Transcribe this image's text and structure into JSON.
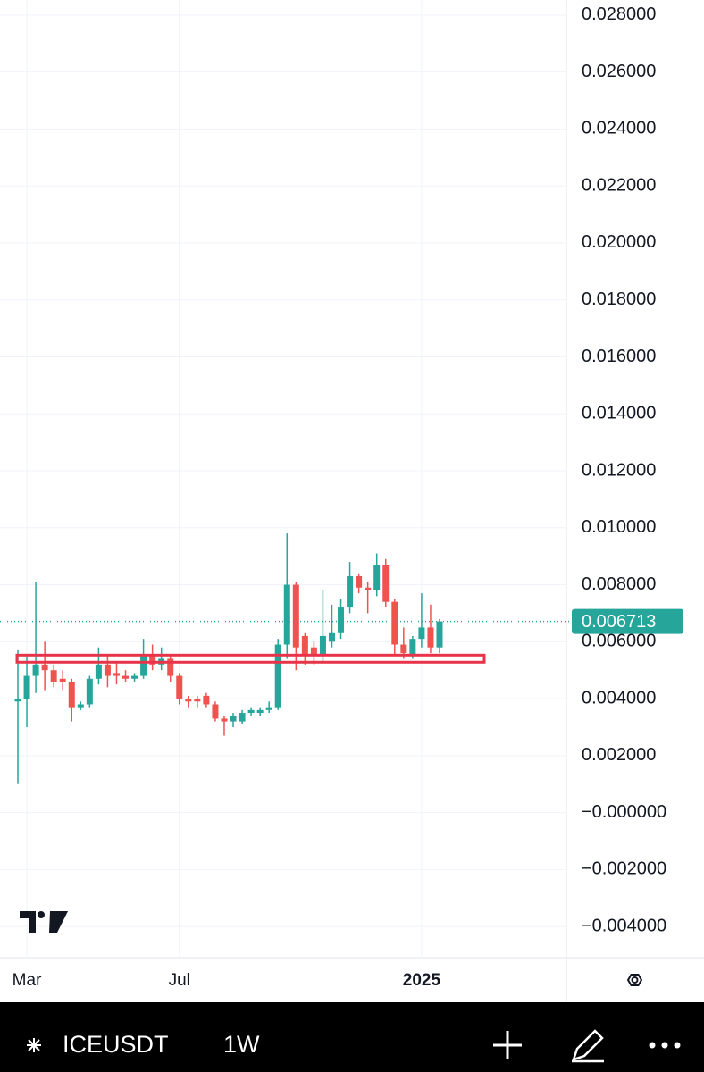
{
  "chart_data": {
    "type": "candlestick",
    "categories": [
      null,
      "Mar",
      null,
      null,
      null,
      null,
      null,
      null,
      null,
      null,
      null,
      null,
      null,
      null,
      null,
      null,
      null,
      null,
      "Jul",
      null,
      null,
      null,
      null,
      null,
      null,
      null,
      null,
      null,
      null,
      null,
      null,
      null,
      null,
      null,
      null,
      null,
      null,
      null,
      null,
      null,
      null,
      null,
      null,
      null,
      null,
      "2025",
      null,
      null
    ],
    "open": [
      0.0039,
      0.004,
      0.0048,
      0.0052,
      0.005,
      0.0047,
      0.0046,
      0.0037,
      0.0038,
      0.0047,
      0.0052,
      0.0049,
      0.0048,
      0.0047,
      0.0048,
      0.0055,
      0.0052,
      0.0054,
      0.0048,
      0.004,
      0.004,
      0.0041,
      0.0038,
      0.0033,
      0.0032,
      0.0032,
      0.0035,
      0.0035,
      0.0036,
      0.0037,
      0.0059,
      0.008,
      0.0062,
      0.0058,
      0.0055,
      0.006,
      0.0063,
      0.0072,
      0.0083,
      0.0079,
      0.0078,
      0.0087,
      0.0074,
      0.0059,
      0.0055,
      0.0061,
      0.0065,
      0.0058
    ],
    "high": [
      0.0057,
      0.0055,
      0.0081,
      0.006,
      0.0052,
      0.005,
      0.0047,
      0.0039,
      0.0048,
      0.0058,
      0.0055,
      0.0053,
      0.005,
      0.0049,
      0.0061,
      0.0059,
      0.0058,
      0.0055,
      0.0049,
      0.0041,
      0.0041,
      0.0042,
      0.0039,
      0.0034,
      0.0035,
      0.0036,
      0.0037,
      0.0037,
      0.0039,
      0.0061,
      0.0098,
      0.0081,
      0.0063,
      0.006,
      0.0078,
      0.0073,
      0.0075,
      0.0088,
      0.0084,
      0.0081,
      0.0091,
      0.0089,
      0.0075,
      0.0065,
      0.0062,
      0.0077,
      0.0073,
      0.0068
    ],
    "low": [
      0.001,
      0.003,
      0.0042,
      0.0043,
      0.0044,
      0.0043,
      0.0032,
      0.0036,
      0.0037,
      0.0045,
      0.0044,
      0.0045,
      0.0046,
      0.0046,
      0.0047,
      0.005,
      0.005,
      0.0046,
      0.0038,
      0.0037,
      0.0037,
      0.0037,
      0.0032,
      0.0027,
      0.003,
      0.0031,
      0.0034,
      0.0034,
      0.0035,
      0.0036,
      0.0054,
      0.005,
      0.0052,
      0.0052,
      0.0053,
      0.0058,
      0.0061,
      0.007,
      0.0077,
      0.007,
      0.0076,
      0.0072,
      0.0055,
      0.0054,
      0.0054,
      0.0058,
      0.0056,
      0.0056
    ],
    "close": [
      0.004,
      0.0048,
      0.0052,
      0.005,
      0.0046,
      0.0046,
      0.0037,
      0.0038,
      0.0047,
      0.0052,
      0.0048,
      0.0048,
      0.0047,
      0.0048,
      0.0055,
      0.0052,
      0.0054,
      0.0048,
      0.004,
      0.0039,
      0.0039,
      0.0038,
      0.0033,
      0.0032,
      0.0034,
      0.0035,
      0.0036,
      0.0036,
      0.0037,
      0.0059,
      0.008,
      0.0058,
      0.0055,
      0.0055,
      0.0062,
      0.0063,
      0.0072,
      0.0083,
      0.0079,
      0.0078,
      0.0087,
      0.0074,
      0.0059,
      0.0056,
      0.0061,
      0.0065,
      0.0058,
      0.006713
    ],
    "up_color": "#26a69a",
    "down_color": "#ef5350",
    "last_price": 0.006713,
    "zone": {
      "low": 0.00528,
      "high": 0.00553,
      "color": "#e8344a"
    },
    "ylim": [
      -0.00503,
      0.02853
    ],
    "yticks": [
      {
        "value": 0.028,
        "label": "0.028000"
      },
      {
        "value": 0.026,
        "label": "0.026000"
      },
      {
        "value": 0.024,
        "label": "0.024000"
      },
      {
        "value": 0.022,
        "label": "0.022000"
      },
      {
        "value": 0.02,
        "label": "0.020000"
      },
      {
        "value": 0.018,
        "label": "0.018000"
      },
      {
        "value": 0.016,
        "label": "0.016000"
      },
      {
        "value": 0.014,
        "label": "0.014000"
      },
      {
        "value": 0.012,
        "label": "0.012000"
      },
      {
        "value": 0.01,
        "label": "0.010000"
      },
      {
        "value": 0.008,
        "label": "0.008000"
      },
      {
        "value": 0.006,
        "label": "0.006000"
      },
      {
        "value": 0.004,
        "label": "0.004000"
      },
      {
        "value": 0.002,
        "label": "0.002000"
      },
      {
        "value": 0,
        "label": "−0.000000"
      },
      {
        "value": -0.002,
        "label": "−0.002000"
      },
      {
        "value": -0.004,
        "label": "−0.004000"
      }
    ],
    "grid": true
  },
  "toolbar": {
    "symbol": "ICEUSDT",
    "interval": "1W"
  }
}
